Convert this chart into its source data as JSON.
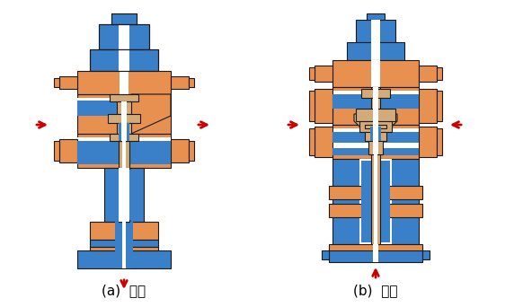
{
  "label_a": "(a)  分流",
  "label_b": "(b)  合流",
  "bg_color": "#ffffff",
  "orange": "#E89050",
  "blue": "#3A80C8",
  "tan": "#D4AA78",
  "red": "#CC0000",
  "white": "#ffffff",
  "black": "#1a1a1a",
  "label_fontsize": 11
}
